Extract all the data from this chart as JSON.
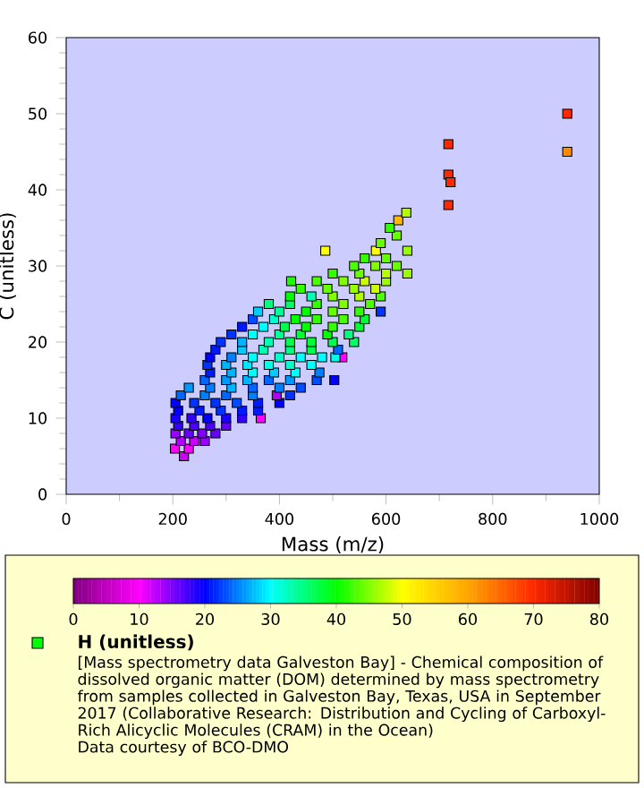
{
  "chart_data": {
    "type": "scatter",
    "xlabel": "Mass (m/z)",
    "ylabel": "C (unitless)",
    "xlim": [
      0,
      1000
    ],
    "ylim": [
      0,
      60
    ],
    "xticks": [
      0,
      200,
      400,
      600,
      800,
      1000
    ],
    "yticks": [
      0,
      10,
      20,
      30,
      40,
      50,
      60
    ],
    "clim": [
      0,
      80
    ],
    "cticks": [
      0,
      10,
      20,
      30,
      40,
      50,
      60,
      70,
      80
    ],
    "marker": "square",
    "legend": "bottom",
    "annotations": [
      "[Mass spectrometry data Galveston Bay] - Chemical composition of dissolved organic matter (DOM) determined by mass spectrometry from samples collected in Galveston Bay, Texas, USA in September 2017 (Collaborative Research: Distribution and Cycling of Carboxyl-Rich Alicyclic Molecules (CRAM) in the Ocean)",
      "Data courtesy of BCO-DMO"
    ],
    "series": [
      {
        "name": "H (unitless)",
        "x": [
          204,
          221,
          230,
          215,
          240,
          260,
          205,
          230,
          255,
          280,
          210,
          240,
          270,
          300,
          205,
          235,
          265,
          300,
          330,
          365,
          210,
          250,
          290,
          330,
          360,
          205,
          240,
          280,
          320,
          360,
          400,
          420,
          215,
          260,
          300,
          350,
          395,
          230,
          270,
          310,
          350,
          400,
          440,
          503,
          260,
          300,
          340,
          380,
          420,
          470,
          270,
          310,
          350,
          390,
          430,
          475,
          265,
          300,
          340,
          380,
          420,
          460,
          518,
          270,
          310,
          350,
          400,
          440,
          480,
          505,
          280,
          330,
          370,
          420,
          460,
          510,
          290,
          330,
          380,
          420,
          460,
          500,
          540,
          310,
          350,
          400,
          440,
          490,
          530,
          330,
          370,
          410,
          450,
          500,
          550,
          350,
          390,
          430,
          470,
          520,
          560,
          360,
          400,
          450,
          500,
          550,
          590,
          380,
          420,
          470,
          520,
          570,
          420,
          460,
          500,
          550,
          590,
          440,
          490,
          540,
          580,
          422,
          470,
          520,
          560,
          600,
          500,
          550,
          600,
          640,
          540,
          580,
          620,
          486,
          560,
          600,
          640,
          581,
          590,
          620,
          607,
          623,
          638,
          717,
          717,
          721,
          717,
          940,
          940
        ],
        "values": [
          6,
          5,
          6,
          7,
          7,
          7,
          8,
          8,
          8,
          8,
          9,
          9,
          9,
          9,
          10,
          10,
          10,
          10,
          10,
          10,
          11,
          11,
          11,
          11,
          11,
          12,
          12,
          12,
          12,
          12,
          12,
          13,
          13,
          13,
          13,
          13,
          13,
          14,
          14,
          14,
          14,
          14,
          14,
          15,
          15,
          15,
          15,
          15,
          15,
          15,
          16,
          16,
          16,
          16,
          16,
          16,
          17,
          17,
          17,
          17,
          17,
          17,
          18,
          18,
          18,
          18,
          18,
          18,
          18,
          18,
          19,
          19,
          19,
          19,
          19,
          19,
          20,
          20,
          20,
          20,
          20,
          20,
          20,
          21,
          21,
          21,
          21,
          21,
          21,
          22,
          22,
          22,
          22,
          22,
          22,
          23,
          23,
          23,
          23,
          23,
          23,
          24,
          24,
          24,
          24,
          24,
          24,
          25,
          25,
          25,
          25,
          25,
          26,
          26,
          26,
          26,
          26,
          27,
          27,
          27,
          27,
          28,
          28,
          28,
          28,
          28,
          29,
          29,
          29,
          29,
          30,
          30,
          30,
          32,
          31,
          31,
          32,
          32,
          33,
          34,
          35,
          36,
          37,
          46,
          42,
          41,
          38,
          50,
          45
        ],
        "cvalues": [
          10,
          12,
          10,
          13,
          12,
          14,
          14,
          16,
          15,
          16,
          18,
          17,
          17,
          16,
          19,
          18,
          20,
          19,
          18,
          10,
          20,
          21,
          22,
          21,
          21,
          20,
          22,
          22,
          23,
          21,
          20,
          22,
          24,
          25,
          24,
          25,
          13,
          26,
          25,
          27,
          24,
          25,
          23,
          20,
          24,
          26,
          27,
          24,
          26,
          23,
          21,
          27,
          30,
          28,
          30,
          25,
          22,
          27,
          29,
          31,
          32,
          30,
          10,
          20,
          25,
          30,
          32,
          30,
          30,
          31,
          21,
          28,
          33,
          35,
          37,
          24,
          22,
          27,
          33,
          37,
          38,
          37,
          36,
          22,
          30,
          34,
          38,
          40,
          35,
          21,
          30,
          37,
          40,
          42,
          38,
          23,
          32,
          40,
          42,
          43,
          38,
          28,
          34,
          40,
          44,
          42,
          22,
          35,
          36,
          42,
          45,
          43,
          40,
          33,
          45,
          47,
          43,
          42,
          44,
          46,
          48,
          41,
          43,
          45,
          48,
          46,
          42,
          44,
          47,
          46,
          43,
          45,
          44,
          50,
          42,
          44,
          46,
          50,
          44,
          44,
          42,
          58,
          47,
          70,
          70,
          70,
          70,
          70,
          62
        ]
      }
    ]
  }
}
